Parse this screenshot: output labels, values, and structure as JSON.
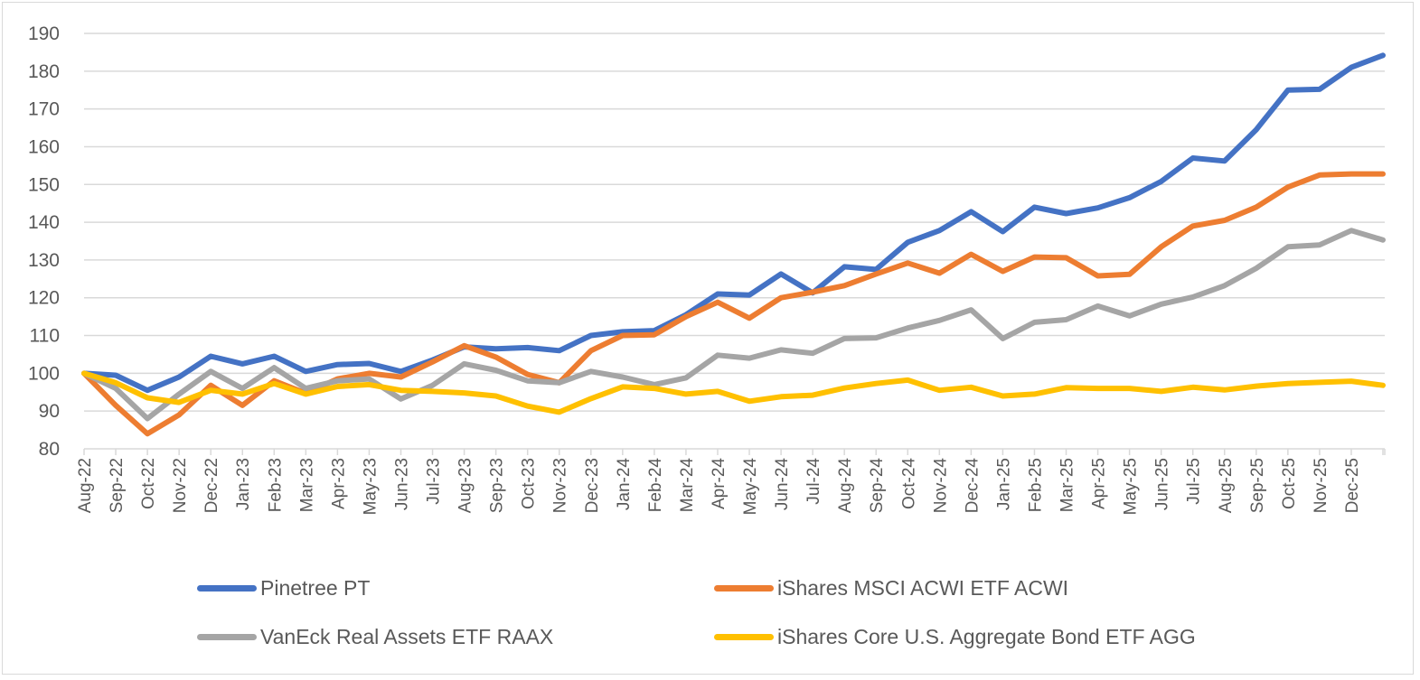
{
  "chart_data": {
    "type": "line",
    "title": "",
    "xlabel": "",
    "ylabel": "",
    "ylim": [
      80,
      190
    ],
    "yticks": [
      80,
      90,
      100,
      110,
      120,
      130,
      140,
      150,
      160,
      170,
      180,
      190
    ],
    "grid": true,
    "legend_position": "bottom",
    "categories": [
      "Aug-22",
      "Sep-22",
      "Oct-22",
      "Nov-22",
      "Dec-22",
      "Jan-23",
      "Feb-23",
      "Mar-23",
      "Apr-23",
      "May-23",
      "Jun-23",
      "Jul-23",
      "Aug-23",
      "Sep-23",
      "Oct-23",
      "Nov-23",
      "Dec-23",
      "Jan-24",
      "Feb-24",
      "Mar-24",
      "Apr-24",
      "May-24",
      "Jun-24",
      "Jul-24",
      "Aug-24",
      "Sep-24",
      "Oct-24",
      "Nov-24",
      "Dec-24",
      "Jan-25",
      "Feb-25",
      "Mar-25",
      "Apr-25",
      "May-25",
      "Jun-25",
      "Jul-25",
      "Aug-25",
      "Sep-25",
      "Oct-25",
      "Nov-25",
      "Dec-25",
      ""
    ],
    "series": [
      {
        "name": "Pinetree PT",
        "color": "#4472C4",
        "values": [
          100,
          99.5,
          95.5,
          99,
          104.5,
          102.5,
          104.5,
          100.5,
          102.3,
          102.6,
          100.5,
          103.5,
          107,
          106.5,
          106.8,
          106,
          110,
          111,
          111.3,
          115.5,
          121,
          120.7,
          126.3,
          121.3,
          128.2,
          127.5,
          134.7,
          137.8,
          142.8,
          137.5,
          144,
          142.3,
          143.8,
          146.5,
          150.8,
          157,
          156.2,
          164.5,
          175,
          175.2,
          181,
          184.2
        ]
      },
      {
        "name": "iShares MSCI ACWI ETF ACWI",
        "color": "#ED7D31",
        "values": [
          100,
          91.5,
          84,
          89,
          96.8,
          91.5,
          98,
          94.7,
          98.5,
          100,
          99,
          103,
          107.3,
          104.3,
          99.7,
          97.5,
          106,
          110,
          110.2,
          115,
          118.8,
          114.6,
          120,
          121.5,
          123.2,
          126.3,
          129.2,
          126.5,
          131.5,
          127,
          130.8,
          130.6,
          125.8,
          126.2,
          133.5,
          139,
          140.5,
          144,
          149.3,
          152.5,
          152.8,
          152.8
        ]
      },
      {
        "name": "VanEck Real Assets ETF RAAX",
        "color": "#A5A5A5",
        "values": [
          100,
          96,
          88,
          94.5,
          100.5,
          96,
          101.5,
          96,
          98,
          98.5,
          93.2,
          96.8,
          102.5,
          100.8,
          98,
          97.5,
          100.5,
          99,
          97,
          98.8,
          104.8,
          104,
          106.2,
          105.3,
          109.2,
          109.4,
          112,
          114,
          116.8,
          109.2,
          113.5,
          114.2,
          117.8,
          115.2,
          118.3,
          120.2,
          123.2,
          127.8,
          133.5,
          134,
          137.8,
          135.3
        ]
      },
      {
        "name": "iShares Core U.S. Aggregate Bond ETF AGG",
        "color": "#FFC000",
        "values": [
          100,
          97.5,
          93.5,
          92.3,
          95.5,
          94.5,
          97.3,
          94.5,
          96.5,
          97,
          95.5,
          95.2,
          94.8,
          94,
          91.3,
          89.7,
          93.3,
          96.4,
          96,
          94.5,
          95.2,
          92.6,
          93.8,
          94.2,
          96.1,
          97.3,
          98.2,
          95.5,
          96.3,
          94,
          94.5,
          96.2,
          96,
          96,
          95.2,
          96.3,
          95.6,
          96.6,
          97.3,
          97.6,
          97.9,
          96.8
        ]
      }
    ]
  }
}
